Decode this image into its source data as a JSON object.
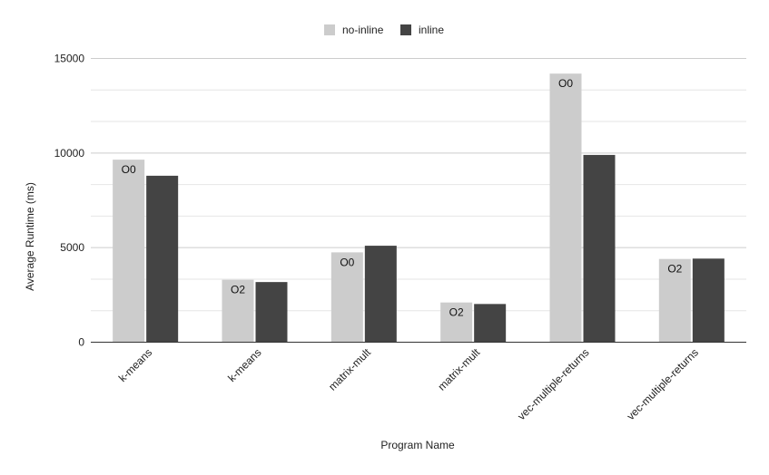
{
  "chart_data": {
    "type": "bar",
    "title": "",
    "xlabel": "Program Name",
    "ylabel": "Average Runtime (ms)",
    "ylim": [
      0,
      15000
    ],
    "yticks": [
      0,
      5000,
      10000,
      15000
    ],
    "minor_gridlines": true,
    "legend_position": "top-center",
    "categories": [
      "k-means",
      "k-means",
      "matrix-mult",
      "matrix-mult",
      "vec-multiple-returns",
      "vec-multiple-returns"
    ],
    "bar_labels": [
      "O0",
      "O2",
      "O0",
      "O2",
      "O0",
      "O2"
    ],
    "series": [
      {
        "name": "no-inline",
        "color": "#cccccc",
        "values": [
          9650,
          3300,
          4750,
          2100,
          14200,
          4400
        ]
      },
      {
        "name": "inline",
        "color": "#444444",
        "values": [
          8800,
          3180,
          5100,
          2020,
          9900,
          4420
        ]
      }
    ]
  }
}
